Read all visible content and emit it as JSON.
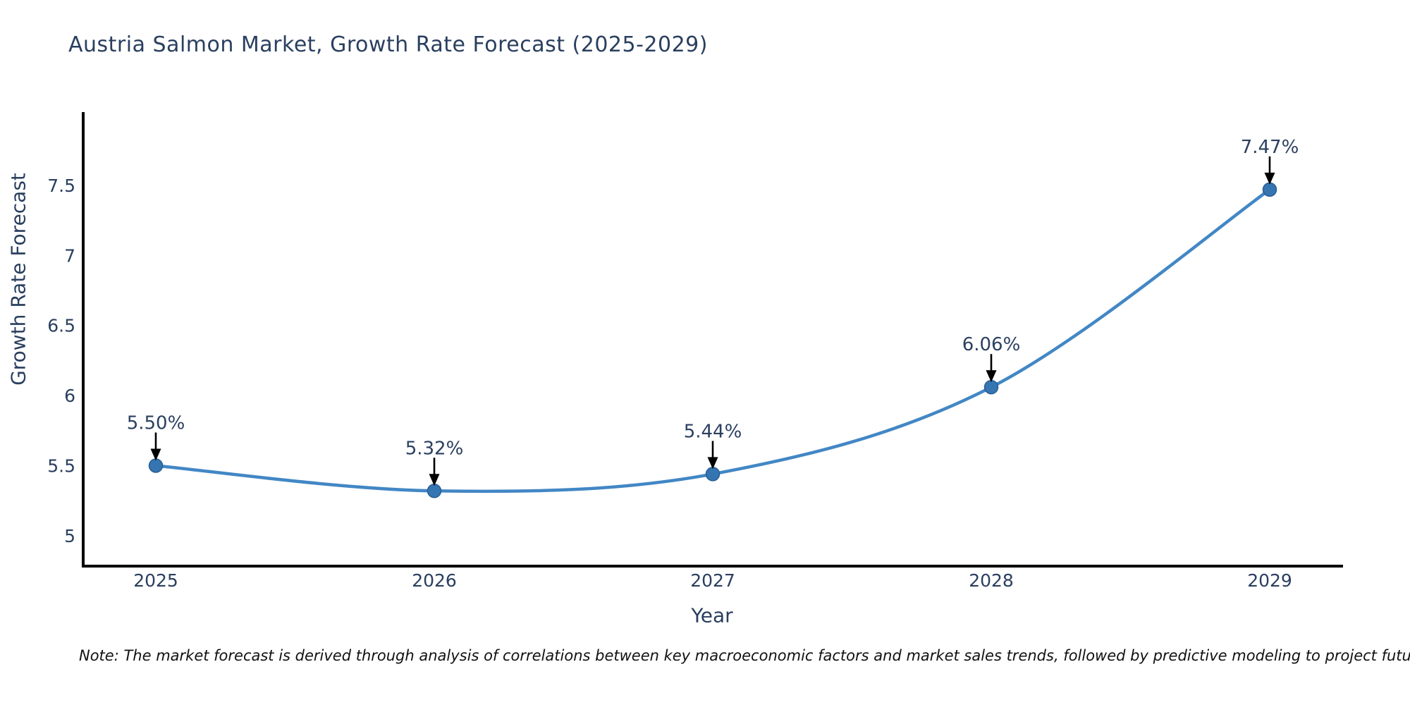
{
  "title": "Austria Salmon Market, Growth Rate Forecast (2025-2029)",
  "note": "Note: The market forecast is derived through analysis of correlations between key macroeconomic factors and market sales trends, followed by predictive modeling to project future sales",
  "chart_data": {
    "type": "line",
    "curve": "spline",
    "title": "Austria Salmon Market, Growth Rate Forecast (2025-2029)",
    "xlabel": "Year",
    "ylabel": "Growth Rate Forecast",
    "x": [
      "2025",
      "2026",
      "2027",
      "2028",
      "2029"
    ],
    "series": [
      {
        "name": "Growth Rate Forecast",
        "values": [
          5.5,
          5.32,
          5.44,
          6.06,
          7.47
        ]
      }
    ],
    "point_labels": [
      "5.50%",
      "5.32%",
      "5.44%",
      "6.06%",
      "7.47%"
    ],
    "ytick_values": [
      5,
      5.5,
      6,
      6.5,
      7,
      7.5
    ],
    "ytick_labels": [
      "5",
      "5.5",
      "6",
      "6.5",
      "7",
      "7.5"
    ],
    "ylim": [
      4.78,
      8.02
    ],
    "xlim": [
      2024.74,
      2029.26
    ],
    "grid": false,
    "legend": false,
    "colors": {
      "line": "#4287c5",
      "marker": "#3575b2",
      "marker_edge": "#2a5d94",
      "axis": "#000000",
      "tick_text": "#2a3f5f",
      "annotation_text": "#2a3f5f",
      "annotation_arrow": "#000000"
    }
  }
}
